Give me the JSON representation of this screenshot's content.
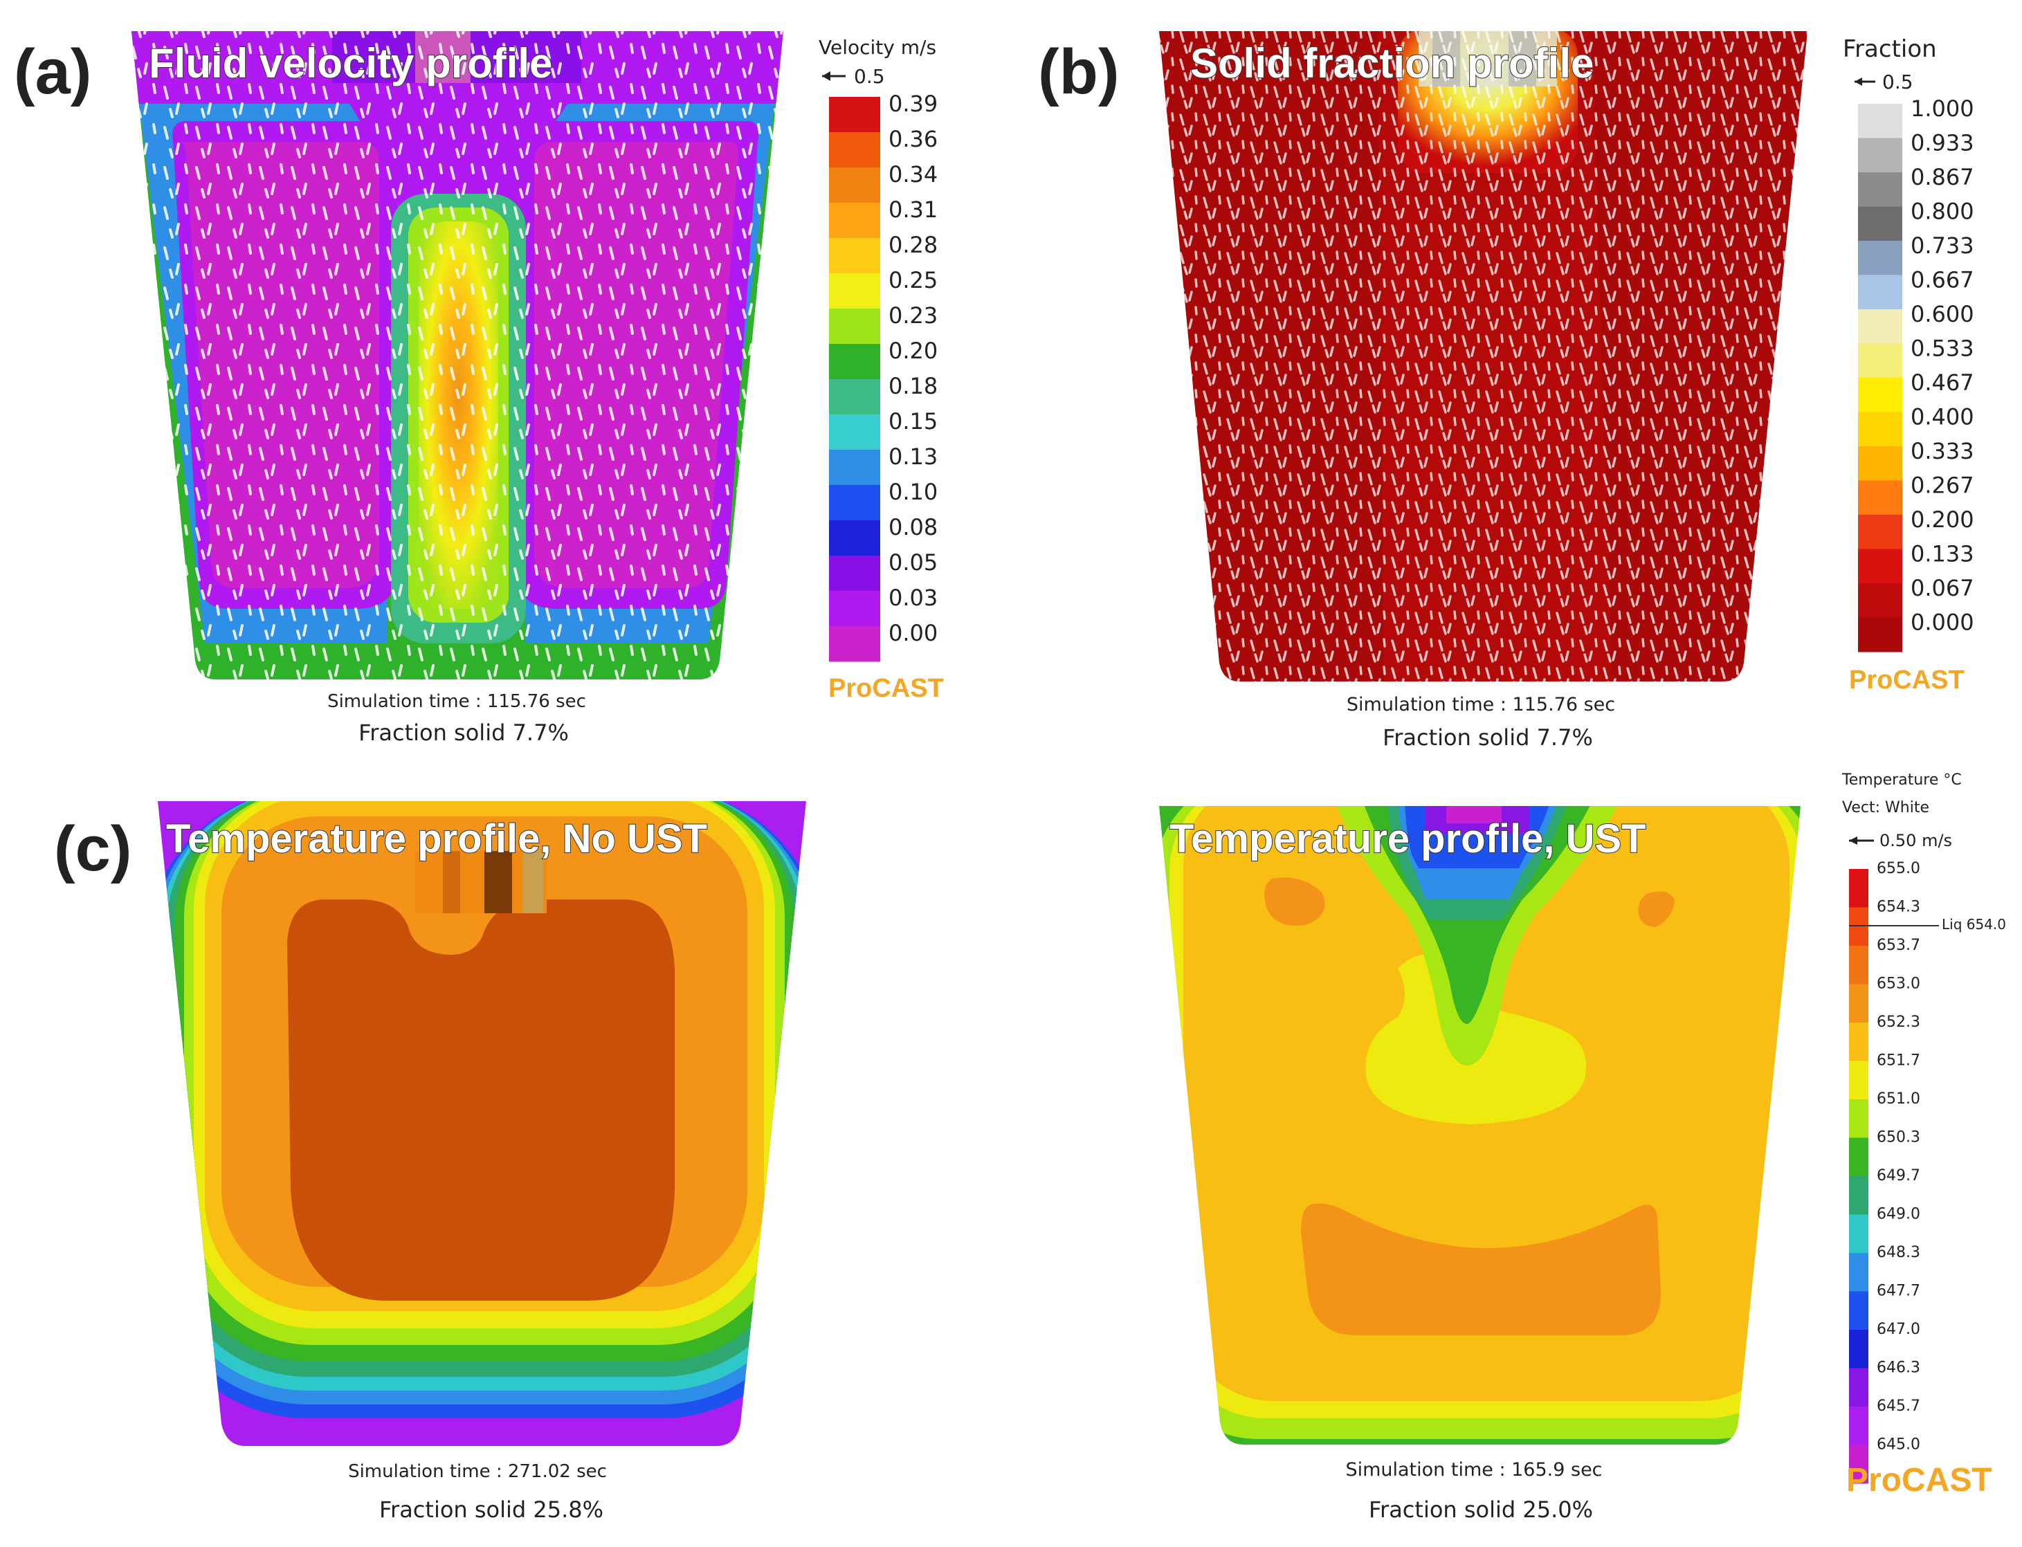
{
  "panels": {
    "a": {
      "letter": "(a)",
      "title": "Fluid velocity profile",
      "sim_time": "Simulation time : 115.76 sec",
      "fraction": "Fraction solid 7.7%",
      "legend_title": "Velocity m/s",
      "arrow_label": "0.5",
      "legend_values": [
        "0.39",
        "0.36",
        "0.34",
        "0.31",
        "0.28",
        "0.25",
        "0.23",
        "0.20",
        "0.18",
        "0.15",
        "0.13",
        "0.10",
        "0.08",
        "0.05",
        "0.03",
        "0.00"
      ],
      "legend_colors": [
        "#d61212",
        "#f05a0a",
        "#f0820f",
        "#ffa515",
        "#ffcc15",
        "#f0f014",
        "#9ee61c",
        "#2fb22a",
        "#3dbb86",
        "#39cfd0",
        "#2f8ee6",
        "#1f4ff0",
        "#1e22d8",
        "#8a10e8",
        "#b01af0",
        "#cc22cc"
      ],
      "brand": "ProCAST"
    },
    "b": {
      "letter": "(b)",
      "title": "Solid fraction profile",
      "sim_time": "Simulation time : 115.76 sec",
      "fraction": "Fraction solid 7.7%",
      "legend_title": "Fraction",
      "arrow_label": "0.5",
      "legend_values": [
        "1.000",
        "0.933",
        "0.867",
        "0.800",
        "0.733",
        "0.667",
        "0.600",
        "0.533",
        "0.467",
        "0.400",
        "0.333",
        "0.267",
        "0.200",
        "0.133",
        "0.067",
        "0.000"
      ],
      "legend_colors": [
        "#dedede",
        "#b4b4b4",
        "#8c8c8c",
        "#6e6e6e",
        "#8aa0c0",
        "#a8c4e6",
        "#f3ecb4",
        "#f3f07a",
        "#ffee00",
        "#ffd500",
        "#ffb400",
        "#ff7a10",
        "#ee3a12",
        "#d8120e",
        "#be0c0c",
        "#a80808"
      ],
      "brand": "ProCAST"
    },
    "c": {
      "letter": "(c)",
      "title": "Temperature profile, No UST",
      "sim_time": "Simulation time : 271.02 sec",
      "fraction": "Fraction solid 25.8%"
    },
    "d": {
      "title": "Temperature profile, UST",
      "sim_time": "Simulation time : 165.9 sec",
      "fraction": "Fraction solid 25.0%",
      "legend_title": "Temperature °C",
      "legend_subtitle": "Vect: White",
      "arrow_label": "0.50 m/s",
      "liq_label": "Liq 654.0",
      "legend_values": [
        "655.0",
        "654.3",
        "653.7",
        "653.0",
        "652.3",
        "651.7",
        "651.0",
        "650.3",
        "649.7",
        "649.0",
        "648.3",
        "647.7",
        "647.0",
        "646.3",
        "645.7",
        "645.0"
      ],
      "legend_colors": [
        "#dd1111",
        "#ee4a10",
        "#f07414",
        "#f39418",
        "#f8be14",
        "#eeea10",
        "#a8e614",
        "#38b424",
        "#2ea870",
        "#2ec8c8",
        "#2e8ee8",
        "#1e52f0",
        "#1a22d8",
        "#8a16e6",
        "#aa1ef0",
        "#c820d0"
      ],
      "brand": "ProCAST"
    }
  }
}
